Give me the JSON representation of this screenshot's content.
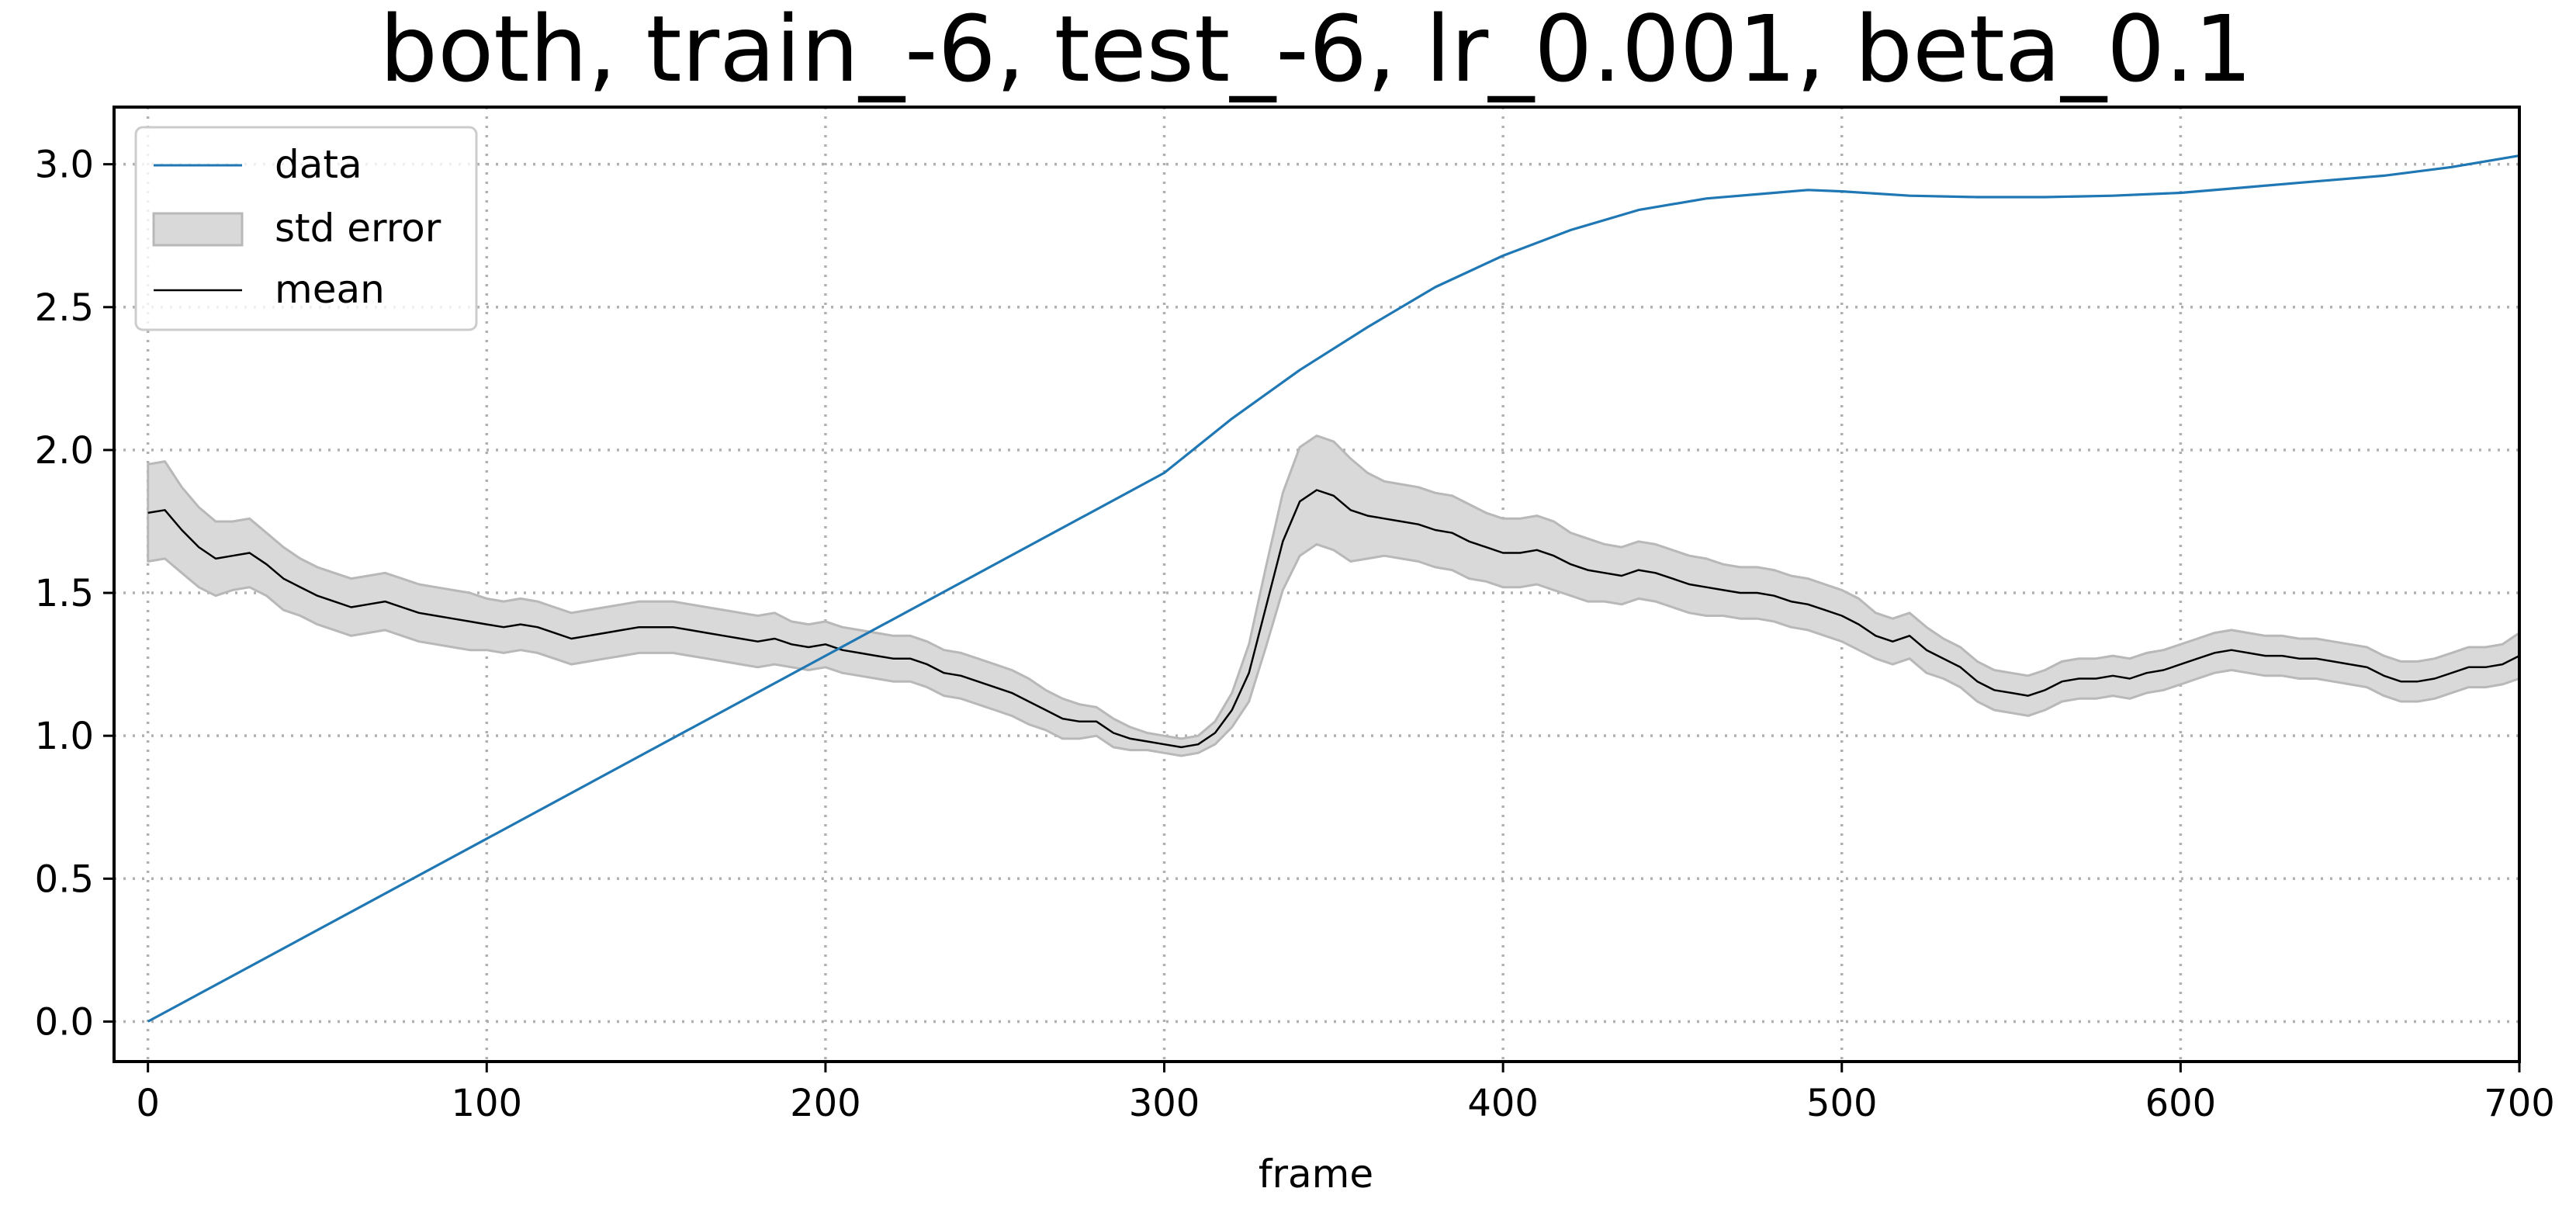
{
  "chart_data": {
    "type": "line",
    "title": "both, train_-6, test_-6, lr_0.001, beta_0.1",
    "xlabel": "frame",
    "ylabel": "",
    "xlim": [
      -10,
      700
    ],
    "ylim": [
      -0.14,
      3.2
    ],
    "x_ticks": [
      0,
      100,
      200,
      300,
      400,
      500,
      600,
      700
    ],
    "x_tick_labels": [
      "0",
      "100",
      "200",
      "300",
      "400",
      "500",
      "600",
      "700"
    ],
    "y_ticks": [
      0.0,
      0.5,
      1.0,
      1.5,
      2.0,
      2.5,
      3.0
    ],
    "y_tick_labels": [
      "0.0",
      "0.5",
      "1.0",
      "1.5",
      "2.0",
      "2.5",
      "3.0"
    ],
    "grid": true,
    "legend_position": "top-left",
    "legend": [
      {
        "label": "data",
        "kind": "line",
        "color": "#1f77b4"
      },
      {
        "label": "std error",
        "kind": "patch",
        "color": "#d9d9d9",
        "edge_color": "#b8b8b8"
      },
      {
        "label": "mean",
        "kind": "line",
        "color": "#000000"
      }
    ],
    "series": [
      {
        "name": "data",
        "color": "#1f77b4",
        "x": [
          0,
          100,
          200,
          300,
          320,
          340,
          360,
          380,
          400,
          420,
          440,
          460,
          480,
          490,
          500,
          520,
          540,
          560,
          580,
          600,
          620,
          640,
          660,
          680,
          700
        ],
        "y": [
          0.0,
          0.64,
          1.28,
          1.92,
          2.11,
          2.28,
          2.43,
          2.57,
          2.68,
          2.77,
          2.84,
          2.88,
          2.9,
          2.91,
          2.905,
          2.89,
          2.885,
          2.885,
          2.89,
          2.9,
          2.92,
          2.94,
          2.96,
          2.99,
          3.03
        ]
      },
      {
        "name": "mean",
        "color": "#000000",
        "x": [
          0,
          5,
          10,
          15,
          20,
          25,
          30,
          35,
          40,
          45,
          50,
          55,
          60,
          65,
          70,
          75,
          80,
          85,
          90,
          95,
          100,
          105,
          110,
          115,
          120,
          125,
          130,
          135,
          140,
          145,
          150,
          155,
          160,
          165,
          170,
          175,
          180,
          185,
          190,
          195,
          200,
          205,
          210,
          215,
          220,
          225,
          230,
          235,
          240,
          245,
          250,
          255,
          260,
          265,
          270,
          275,
          280,
          285,
          290,
          295,
          300,
          305,
          310,
          315,
          320,
          325,
          330,
          335,
          340,
          345,
          350,
          355,
          360,
          365,
          370,
          375,
          380,
          385,
          390,
          395,
          400,
          405,
          410,
          415,
          420,
          425,
          430,
          435,
          440,
          445,
          450,
          455,
          460,
          465,
          470,
          475,
          480,
          485,
          490,
          495,
          500,
          505,
          510,
          515,
          520,
          525,
          530,
          535,
          540,
          545,
          550,
          555,
          560,
          565,
          570,
          575,
          580,
          585,
          590,
          595,
          600,
          605,
          610,
          615,
          620,
          625,
          630,
          635,
          640,
          645,
          650,
          655,
          660,
          665,
          670,
          675,
          680,
          685,
          690,
          695,
          700
        ],
        "y": [
          1.78,
          1.79,
          1.72,
          1.66,
          1.62,
          1.63,
          1.64,
          1.6,
          1.55,
          1.52,
          1.49,
          1.47,
          1.45,
          1.46,
          1.47,
          1.45,
          1.43,
          1.42,
          1.41,
          1.4,
          1.39,
          1.38,
          1.39,
          1.38,
          1.36,
          1.34,
          1.35,
          1.36,
          1.37,
          1.38,
          1.38,
          1.38,
          1.37,
          1.36,
          1.35,
          1.34,
          1.33,
          1.34,
          1.32,
          1.31,
          1.32,
          1.3,
          1.29,
          1.28,
          1.27,
          1.27,
          1.25,
          1.22,
          1.21,
          1.19,
          1.17,
          1.15,
          1.12,
          1.09,
          1.06,
          1.05,
          1.05,
          1.01,
          0.99,
          0.98,
          0.97,
          0.96,
          0.97,
          1.01,
          1.09,
          1.22,
          1.45,
          1.68,
          1.82,
          1.86,
          1.84,
          1.79,
          1.77,
          1.76,
          1.75,
          1.74,
          1.72,
          1.71,
          1.68,
          1.66,
          1.64,
          1.64,
          1.65,
          1.63,
          1.6,
          1.58,
          1.57,
          1.56,
          1.58,
          1.57,
          1.55,
          1.53,
          1.52,
          1.51,
          1.5,
          1.5,
          1.49,
          1.47,
          1.46,
          1.44,
          1.42,
          1.39,
          1.35,
          1.33,
          1.35,
          1.3,
          1.27,
          1.24,
          1.19,
          1.16,
          1.15,
          1.14,
          1.16,
          1.19,
          1.2,
          1.2,
          1.21,
          1.2,
          1.22,
          1.23,
          1.25,
          1.27,
          1.29,
          1.3,
          1.29,
          1.28,
          1.28,
          1.27,
          1.27,
          1.26,
          1.25,
          1.24,
          1.21,
          1.19,
          1.19,
          1.2,
          1.22,
          1.24,
          1.24,
          1.25,
          1.28
        ],
        "std_error": [
          0.17,
          0.17,
          0.15,
          0.14,
          0.13,
          0.12,
          0.12,
          0.11,
          0.11,
          0.1,
          0.1,
          0.1,
          0.1,
          0.1,
          0.1,
          0.1,
          0.1,
          0.1,
          0.1,
          0.1,
          0.09,
          0.09,
          0.09,
          0.09,
          0.09,
          0.09,
          0.09,
          0.09,
          0.09,
          0.09,
          0.09,
          0.09,
          0.09,
          0.09,
          0.09,
          0.09,
          0.09,
          0.09,
          0.08,
          0.08,
          0.08,
          0.08,
          0.08,
          0.08,
          0.08,
          0.08,
          0.08,
          0.08,
          0.08,
          0.08,
          0.08,
          0.08,
          0.08,
          0.07,
          0.07,
          0.06,
          0.05,
          0.05,
          0.04,
          0.03,
          0.03,
          0.03,
          0.03,
          0.04,
          0.06,
          0.1,
          0.14,
          0.17,
          0.19,
          0.19,
          0.19,
          0.18,
          0.15,
          0.13,
          0.13,
          0.13,
          0.13,
          0.13,
          0.13,
          0.12,
          0.12,
          0.12,
          0.12,
          0.12,
          0.11,
          0.11,
          0.1,
          0.1,
          0.1,
          0.1,
          0.1,
          0.1,
          0.1,
          0.09,
          0.09,
          0.09,
          0.09,
          0.09,
          0.09,
          0.09,
          0.09,
          0.09,
          0.08,
          0.08,
          0.08,
          0.08,
          0.07,
          0.07,
          0.07,
          0.07,
          0.07,
          0.07,
          0.07,
          0.07,
          0.07,
          0.07,
          0.07,
          0.07,
          0.07,
          0.07,
          0.07,
          0.07,
          0.07,
          0.07,
          0.07,
          0.07,
          0.07,
          0.07,
          0.07,
          0.07,
          0.07,
          0.07,
          0.07,
          0.07,
          0.07,
          0.07,
          0.07,
          0.07,
          0.07,
          0.07,
          0.08
        ]
      }
    ]
  }
}
